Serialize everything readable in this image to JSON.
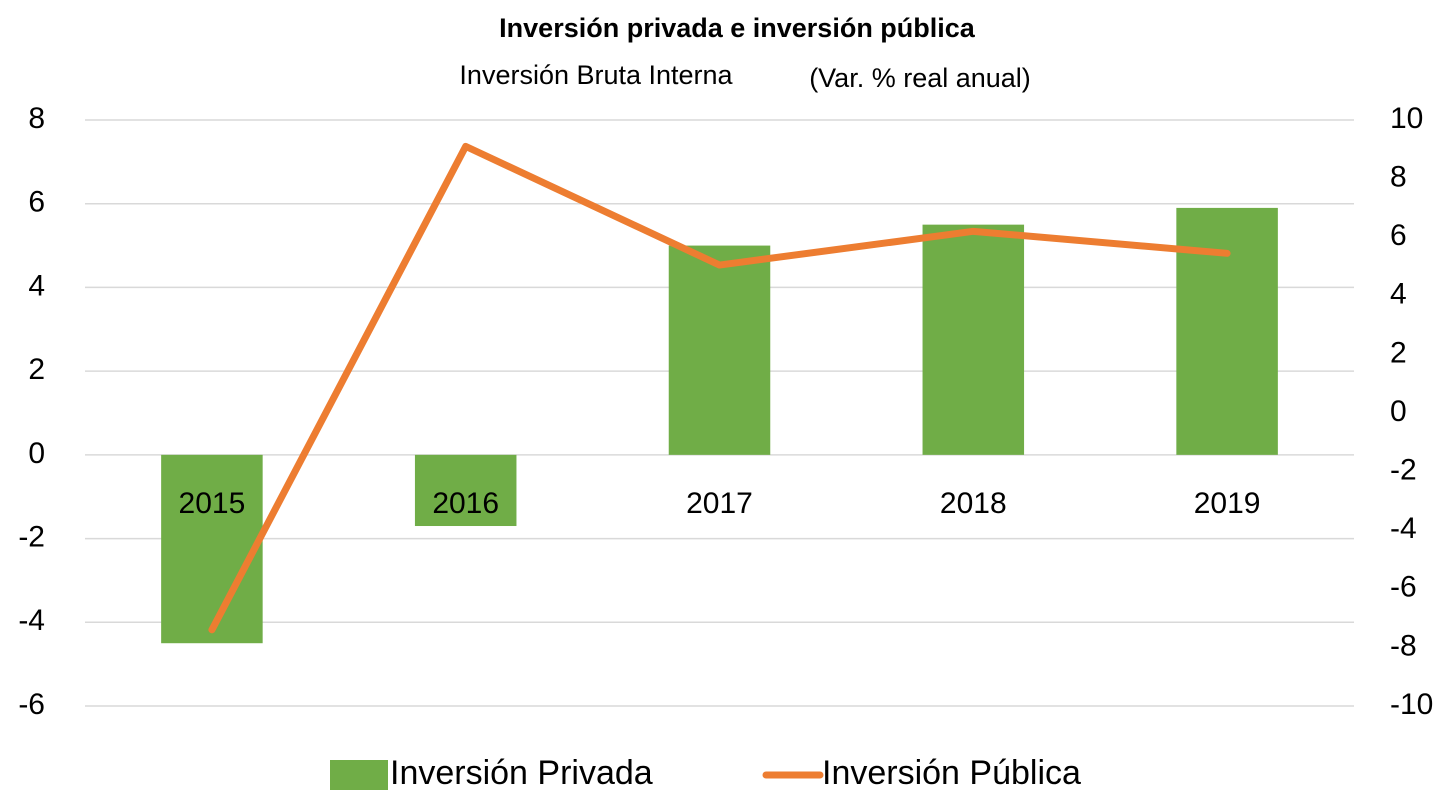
{
  "chart_data": {
    "type": "combo",
    "title": "Inversión privada e inversión pública",
    "subtitle": "Inversión Bruta Interna",
    "unit_note": "(Var. % real anual)",
    "categories": [
      "2015",
      "2016",
      "2017",
      "2018",
      "2019"
    ],
    "series": [
      {
        "name": "Inversión Privada",
        "type": "bar",
        "color": "#70ad47",
        "values": [
          -4.5,
          -1.7,
          5.0,
          5.5,
          5.9
        ]
      },
      {
        "name": "Inversión Pública",
        "type": "line",
        "axis": "y2",
        "color": "#ed7d31",
        "values": [
          -7.4,
          9.1,
          5.05,
          6.2,
          5.45
        ]
      }
    ],
    "ylim": [
      -6,
      8
    ],
    "yticks": [
      -6,
      -4,
      -2,
      0,
      2,
      4,
      6,
      8
    ],
    "y2lim": [
      -10,
      10
    ],
    "y2ticks": [
      -10,
      -8,
      -6,
      -4,
      -2,
      0,
      2,
      4,
      6,
      8,
      10
    ],
    "grid": true,
    "legend": "bottom"
  }
}
